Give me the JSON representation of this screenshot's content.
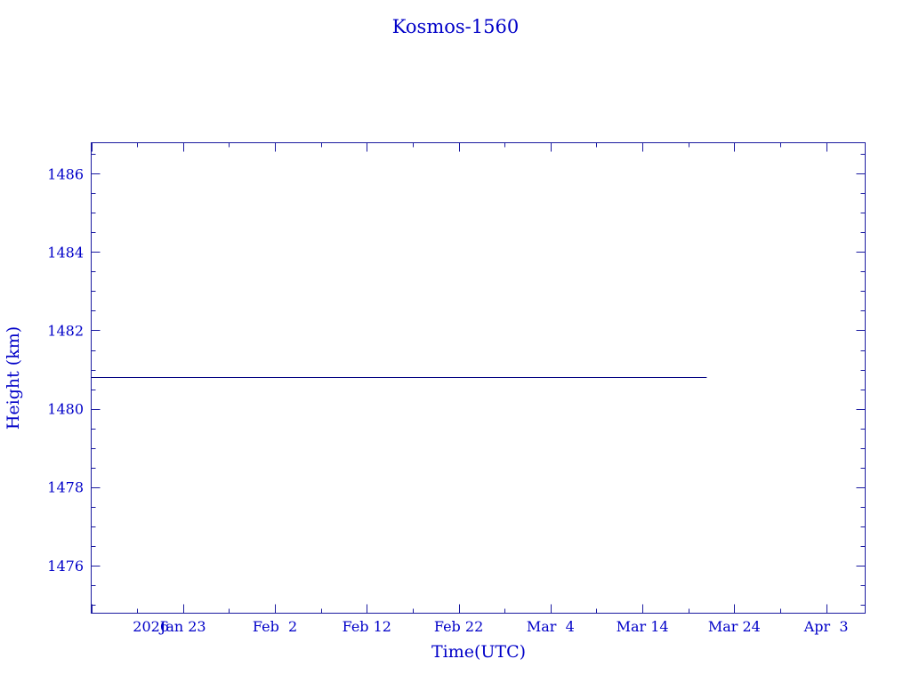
{
  "chart_data": {
    "type": "line",
    "title": "Kosmos-1560",
    "xlabel": "Time(UTC)",
    "ylabel": "Height (km)",
    "x_year_label": "2026",
    "xlim": [
      "2026-01-13",
      "2026-04-07"
    ],
    "ylim": [
      1474.78,
      1486.79
    ],
    "x_ticks": [
      {
        "date": "2026-01-23",
        "label": "Jan 23"
      },
      {
        "date": "2026-02-02",
        "label": "Feb  2"
      },
      {
        "date": "2026-02-12",
        "label": "Feb 12"
      },
      {
        "date": "2026-02-22",
        "label": "Feb 22"
      },
      {
        "date": "2026-03-04",
        "label": "Mar  4"
      },
      {
        "date": "2026-03-14",
        "label": "Mar 14"
      },
      {
        "date": "2026-03-24",
        "label": "Mar 24"
      },
      {
        "date": "2026-04-03",
        "label": "Apr  3"
      }
    ],
    "y_ticks": [
      1476,
      1478,
      1480,
      1482,
      1484,
      1486
    ],
    "grid": false,
    "series": [
      {
        "points": [
          [
            "2026-01-13",
            1480.8
          ],
          [
            "2026-03-21",
            1480.8
          ]
        ]
      }
    ],
    "colors": {
      "axis": "#1a1aa0",
      "text": "#0000c8",
      "line": "#000080"
    }
  }
}
